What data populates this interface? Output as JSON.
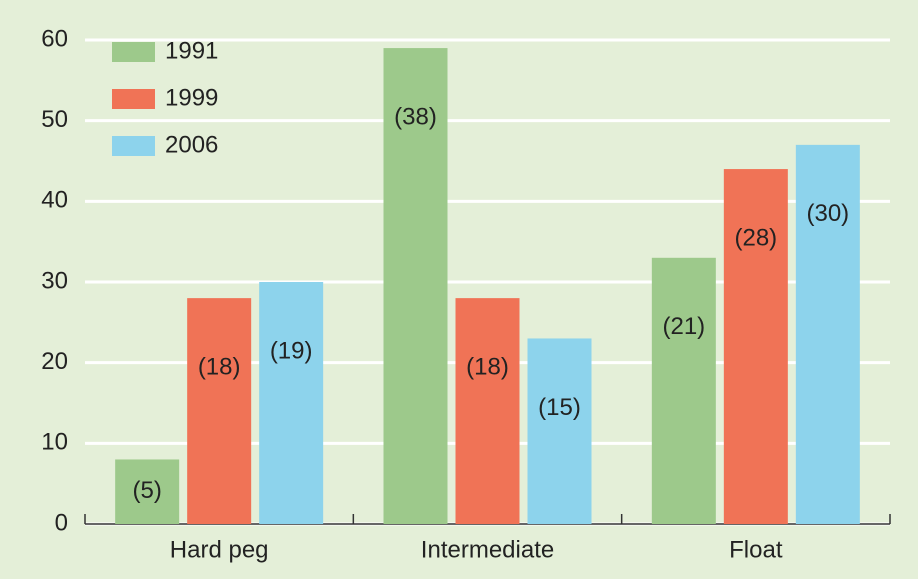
{
  "chart_data": {
    "type": "bar",
    "categories": [
      "Hard peg",
      "Intermediate",
      "Float"
    ],
    "series": [
      {
        "name": "1991",
        "color": "#9dc98b",
        "values": [
          8,
          59,
          33
        ],
        "bar_labels": [
          "(5)",
          "(38)",
          "(21)"
        ]
      },
      {
        "name": "1999",
        "color": "#f07356",
        "values": [
          28,
          28,
          44
        ],
        "bar_labels": [
          "(18)",
          "(18)",
          "(28)"
        ]
      },
      {
        "name": "2006",
        "color": "#8dd3ec",
        "values": [
          30,
          23,
          47
        ],
        "bar_labels": [
          "(19)",
          "(15)",
          "(30)"
        ]
      }
    ],
    "ylim": [
      0,
      60
    ],
    "yticks": [
      0,
      10,
      20,
      30,
      40,
      50,
      60
    ],
    "grid": true,
    "legend": "upper left"
  }
}
